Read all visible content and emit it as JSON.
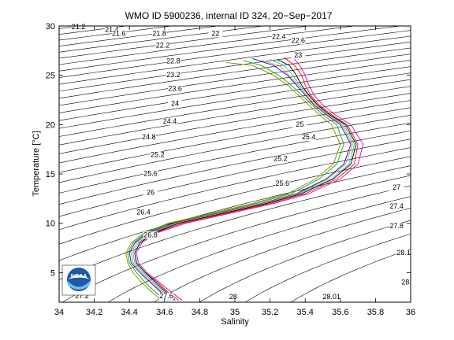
{
  "chart_data": {
    "type": "line",
    "title": "WMO ID 5900236, internal ID 324, 20−Sep−2017",
    "xlabel": "Salinity",
    "ylabel": "Temperature [°C]",
    "xlim": [
      34,
      36
    ],
    "ylim": [
      2,
      30
    ],
    "xticks": [
      "34",
      "34.2",
      "34.4",
      "34.6",
      "34.8",
      "35",
      "35.2",
      "35.4",
      "35.6",
      "35.8",
      "36"
    ],
    "yticks": [
      "5",
      "10",
      "15",
      "20",
      "25",
      "30"
    ],
    "grid": false,
    "logo_text": "NOAA",
    "density_contours": {
      "levels": [
        21.2,
        21.4,
        21.6,
        21.8,
        22.0,
        22.2,
        22.4,
        22.6,
        22.8,
        23.0,
        23.2,
        23.4,
        23.6,
        23.8,
        24.0,
        24.2,
        24.4,
        24.6,
        24.8,
        25.0,
        25.2,
        25.4,
        25.6,
        25.8,
        26.0,
        26.2,
        26.4,
        26.6,
        26.8,
        27.0,
        27.2,
        27.4,
        27.6,
        27.8,
        28.0
      ],
      "labels": [
        {
          "text": "21.2",
          "s": 34.11,
          "t": 29.7
        },
        {
          "text": "21.4",
          "s": 34.3,
          "t": 29.4
        },
        {
          "text": "21.6",
          "s": 34.34,
          "t": 29.0
        },
        {
          "text": "21.8",
          "s": 34.57,
          "t": 29.0
        },
        {
          "text": "22",
          "s": 34.89,
          "t": 29.0
        },
        {
          "text": "22.2",
          "s": 34.59,
          "t": 27.8
        },
        {
          "text": "22.4",
          "s": 35.25,
          "t": 28.7
        },
        {
          "text": "22.6",
          "s": 35.36,
          "t": 28.3
        },
        {
          "text": "22.8",
          "s": 34.65,
          "t": 26.2
        },
        {
          "text": "23",
          "s": 35.36,
          "t": 26.8
        },
        {
          "text": "23.2",
          "s": 34.65,
          "t": 24.8
        },
        {
          "text": "23.6",
          "s": 34.66,
          "t": 23.4
        },
        {
          "text": "24",
          "s": 34.66,
          "t": 21.9
        },
        {
          "text": "24.4",
          "s": 34.63,
          "t": 20.1
        },
        {
          "text": "24.8",
          "s": 34.51,
          "t": 18.5
        },
        {
          "text": "25.2",
          "s": 34.56,
          "t": 16.7
        },
        {
          "text": "25.6",
          "s": 34.52,
          "t": 14.8
        },
        {
          "text": "26",
          "s": 34.52,
          "t": 12.9
        },
        {
          "text": "26.4",
          "s": 34.48,
          "t": 10.9
        },
        {
          "text": "26.8",
          "s": 34.52,
          "t": 8.6
        },
        {
          "text": "27",
          "s": 35.92,
          "t": 13.4
        },
        {
          "text": "27.4",
          "s": 35.92,
          "t": 11.5
        },
        {
          "text": "27.8",
          "s": 35.92,
          "t": 9.5
        },
        {
          "text": "28.1",
          "s": 35.96,
          "t": 6.8
        },
        {
          "text": "28",
          "s": 35.97,
          "t": 3.8
        },
        {
          "text": "28",
          "s": 34.99,
          "t": 2.3
        },
        {
          "text": "28.01",
          "s": 35.55,
          "t": 2.3
        },
        {
          "text": "27.2",
          "s": 34.13,
          "t": 2.4
        },
        {
          "text": "27.6",
          "s": 34.61,
          "t": 2.4
        },
        {
          "text": "25",
          "s": 35.37,
          "t": 19.8
        },
        {
          "text": "25.4",
          "s": 35.42,
          "t": 18.5
        },
        {
          "text": "25.2",
          "s": 35.26,
          "t": 16.3
        },
        {
          "text": "25.6",
          "s": 35.27,
          "t": 13.8
        }
      ]
    },
    "series": [
      {
        "color": "#0000ff",
        "s": [
          34.62,
          34.58,
          34.52,
          34.46,
          34.41,
          34.4,
          34.43,
          34.5,
          34.65,
          34.9,
          35.15,
          35.35,
          35.52,
          35.62,
          35.66,
          35.6,
          35.52,
          35.45,
          35.4,
          35.35,
          35.3,
          35.22,
          35.1
        ],
        "t": [
          2.2,
          3.0,
          4.0,
          5.0,
          6.0,
          7.0,
          8.0,
          9.0,
          10.0,
          11.0,
          12.0,
          13.0,
          14.5,
          16.0,
          18.0,
          20.0,
          21.0,
          22.0,
          23.0,
          24.0,
          25.0,
          26.0,
          26.7
        ]
      },
      {
        "color": "#ff0000",
        "s": [
          34.68,
          34.62,
          34.56,
          34.49,
          34.44,
          34.43,
          34.46,
          34.54,
          34.7,
          34.95,
          35.2,
          35.4,
          35.58,
          35.68,
          35.7,
          35.64,
          35.55,
          35.48,
          35.43,
          35.4,
          35.38,
          35.34,
          35.28
        ],
        "t": [
          2.2,
          3.0,
          4.0,
          5.0,
          6.0,
          7.0,
          8.0,
          9.0,
          10.0,
          11.0,
          12.0,
          13.0,
          14.5,
          16.0,
          18.0,
          20.0,
          21.0,
          22.0,
          23.0,
          24.0,
          25.0,
          26.0,
          26.8
        ]
      },
      {
        "color": "#00aa00",
        "s": [
          34.6,
          34.55,
          34.49,
          34.44,
          34.4,
          34.39,
          34.42,
          34.49,
          34.63,
          34.88,
          35.12,
          35.32,
          35.48,
          35.58,
          35.62,
          35.58,
          35.5,
          35.44,
          35.38,
          35.32,
          35.25,
          35.15,
          35.05
        ],
        "t": [
          2.3,
          3.0,
          4.0,
          5.0,
          6.0,
          7.0,
          8.0,
          9.0,
          10.0,
          11.0,
          12.0,
          13.0,
          14.5,
          16.0,
          18.0,
          20.0,
          21.0,
          22.0,
          23.0,
          24.0,
          25.0,
          26.0,
          26.5
        ]
      },
      {
        "color": "#00cccc",
        "s": [
          34.65,
          34.6,
          34.54,
          34.48,
          34.43,
          34.42,
          34.45,
          34.52,
          34.67,
          34.92,
          35.17,
          35.37,
          35.55,
          35.65,
          35.68,
          35.62,
          35.53,
          35.47,
          35.42,
          35.37,
          35.33,
          35.28,
          35.2
        ],
        "t": [
          2.2,
          3.0,
          4.0,
          5.0,
          6.0,
          7.0,
          8.0,
          9.0,
          10.0,
          11.0,
          12.0,
          13.0,
          14.5,
          16.0,
          18.0,
          20.0,
          21.0,
          22.0,
          23.0,
          24.0,
          25.0,
          26.0,
          26.6
        ]
      },
      {
        "color": "#cc00cc",
        "s": [
          34.7,
          34.64,
          34.57,
          34.5,
          34.45,
          34.44,
          34.47,
          34.55,
          34.72,
          34.97,
          35.22,
          35.42,
          35.6,
          35.7,
          35.73,
          35.66,
          35.57,
          35.5,
          35.45,
          35.42,
          35.4,
          35.37,
          35.32
        ],
        "t": [
          2.2,
          3.0,
          4.0,
          5.0,
          6.0,
          7.0,
          8.0,
          9.0,
          10.0,
          11.0,
          12.0,
          13.0,
          14.5,
          16.0,
          18.0,
          20.0,
          21.0,
          22.0,
          23.0,
          24.0,
          25.0,
          26.0,
          27.0
        ]
      },
      {
        "color": "#888800",
        "s": [
          34.57,
          34.53,
          34.47,
          34.42,
          34.39,
          34.38,
          34.41,
          34.48,
          34.62,
          34.86,
          35.1,
          35.3,
          35.46,
          35.56,
          35.6,
          35.55,
          35.48,
          35.42,
          35.36,
          35.3,
          35.22,
          35.1,
          34.95
        ],
        "t": [
          2.4,
          3.0,
          4.0,
          5.0,
          6.0,
          7.0,
          8.0,
          9.0,
          10.0,
          11.0,
          12.0,
          13.0,
          14.5,
          16.0,
          18.0,
          20.0,
          21.0,
          22.0,
          23.0,
          24.0,
          25.0,
          26.0,
          26.3
        ]
      },
      {
        "color": "#000000",
        "s": [
          34.66,
          34.61,
          34.55,
          34.49,
          34.44,
          34.43,
          34.46,
          34.53,
          34.68,
          34.93,
          35.18,
          35.38,
          35.56,
          35.66,
          35.69,
          35.63,
          35.54,
          35.47,
          35.42,
          35.38,
          35.35,
          35.31,
          35.24
        ],
        "t": [
          2.2,
          3.0,
          4.0,
          5.0,
          6.0,
          7.0,
          8.0,
          9.0,
          10.0,
          11.0,
          12.0,
          13.0,
          14.5,
          16.0,
          18.0,
          20.0,
          21.0,
          22.0,
          23.0,
          24.0,
          25.0,
          26.0,
          26.6
        ]
      },
      {
        "color": "#ff8800",
        "s": [
          34.63,
          34.59,
          34.53,
          34.47,
          34.42,
          34.41,
          34.44,
          34.51,
          34.66,
          34.91,
          35.16,
          35.36,
          35.53,
          35.63,
          35.67,
          35.61,
          35.53,
          35.46,
          35.41,
          35.36,
          35.31,
          35.25,
          35.15
        ],
        "t": [
          2.2,
          3.0,
          4.0,
          5.0,
          6.0,
          7.0,
          8.0,
          9.0,
          10.0,
          11.0,
          12.0,
          13.0,
          14.5,
          16.0,
          18.0,
          20.0,
          21.0,
          22.0,
          23.0,
          24.0,
          25.0,
          26.0,
          26.5
        ]
      }
    ]
  }
}
